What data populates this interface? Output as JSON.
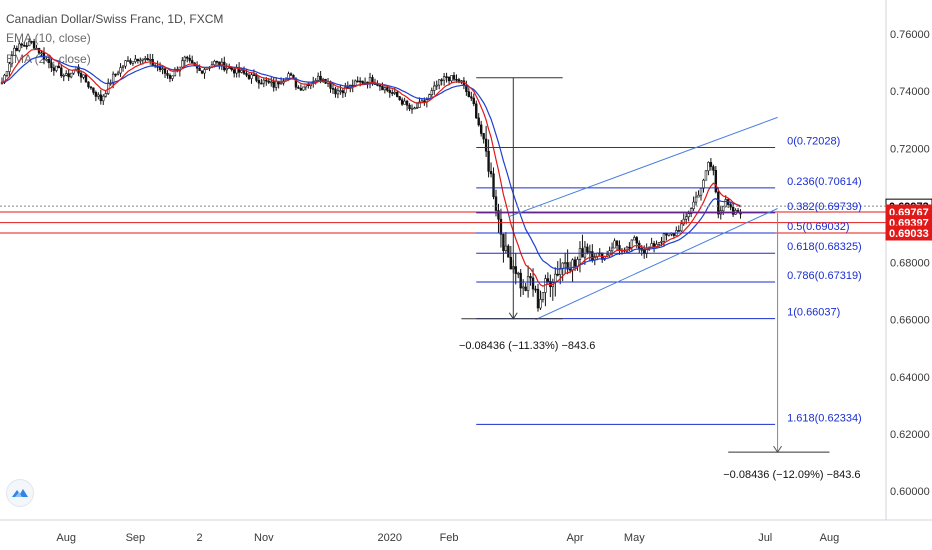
{
  "header": {
    "title": "Canadian Dollar/Swiss Franc, 1D, FXCM",
    "ema1_label": "EMA (10, close)",
    "ema2_label": "EMA (20, close)"
  },
  "chart_data": {
    "type": "candlestick",
    "title": "Canadian Dollar/Swiss Franc, 1D, FXCM",
    "ylim": [
      0.592,
      0.765
    ],
    "y_ticks": [
      "0.76000",
      "0.74000",
      "0.72000",
      "0.70000",
      "0.68000",
      "0.66000",
      "0.64000",
      "0.62000",
      "0.60000"
    ],
    "y_tick_values": [
      0.76,
      0.74,
      0.72,
      0.7,
      0.68,
      0.66,
      0.64,
      0.62,
      0.6
    ],
    "x_ticks": [
      "Aug",
      "Sep",
      "2",
      "Nov",
      "2020",
      "Feb",
      "Apr",
      "May",
      "Jul",
      "Aug"
    ],
    "price_path": [
      [
        0,
        0.743
      ],
      [
        5,
        0.755
      ],
      [
        12,
        0.757
      ],
      [
        20,
        0.749
      ],
      [
        26,
        0.745
      ],
      [
        30,
        0.748
      ],
      [
        36,
        0.741
      ],
      [
        40,
        0.737
      ],
      [
        45,
        0.745
      ],
      [
        50,
        0.75
      ],
      [
        56,
        0.752
      ],
      [
        62,
        0.749
      ],
      [
        68,
        0.745
      ],
      [
        74,
        0.751
      ],
      [
        80,
        0.747
      ],
      [
        86,
        0.75
      ],
      [
        92,
        0.748
      ],
      [
        98,
        0.746
      ],
      [
        104,
        0.744
      ],
      [
        110,
        0.742
      ],
      [
        116,
        0.746
      ],
      [
        120,
        0.741
      ],
      [
        126,
        0.744
      ],
      [
        130,
        0.745
      ],
      [
        135,
        0.74
      ],
      [
        140,
        0.741
      ],
      [
        144,
        0.743
      ],
      [
        150,
        0.744
      ],
      [
        155,
        0.741
      ],
      [
        160,
        0.738
      ],
      [
        166,
        0.733
      ],
      [
        172,
        0.737
      ],
      [
        176,
        0.742
      ],
      [
        180,
        0.745
      ],
      [
        186,
        0.743
      ],
      [
        191,
        0.735
      ],
      [
        195,
        0.722
      ],
      [
        198,
        0.71
      ],
      [
        201,
        0.695
      ],
      [
        204,
        0.683
      ],
      [
        208,
        0.678
      ],
      [
        211,
        0.67
      ],
      [
        214,
        0.674
      ],
      [
        217,
        0.666
      ],
      [
        220,
        0.672
      ],
      [
        224,
        0.676
      ],
      [
        228,
        0.681
      ],
      [
        232,
        0.679
      ],
      [
        236,
        0.686
      ],
      [
        240,
        0.683
      ],
      [
        244,
        0.682
      ],
      [
        248,
        0.687
      ],
      [
        252,
        0.683
      ],
      [
        256,
        0.688
      ],
      [
        260,
        0.684
      ],
      [
        264,
        0.686
      ],
      [
        268,
        0.689
      ],
      [
        272,
        0.69
      ],
      [
        276,
        0.694
      ],
      [
        280,
        0.701
      ],
      [
        284,
        0.708
      ],
      [
        286,
        0.715
      ],
      [
        288,
        0.712
      ],
      [
        290,
        0.698
      ],
      [
        293,
        0.701
      ],
      [
        296,
        0.697
      ],
      [
        299,
        0.698
      ]
    ],
    "ema10_label": "EMA (10, close)",
    "ema20_label": "EMA (20, close)",
    "ema10_color": "#e11919",
    "ema20_color": "#1f3fcf",
    "fib_levels": [
      {
        "label": "0(0.72028)",
        "value": 0.72028
      },
      {
        "label": "0.236(0.70614)",
        "value": 0.70614
      },
      {
        "label": "0.382(0.69739)",
        "value": 0.69739
      },
      {
        "label": "0.5(0.69032)",
        "value": 0.69032
      },
      {
        "label": "0.618(0.68325)",
        "value": 0.68325
      },
      {
        "label": "0.786(0.67319)",
        "value": 0.67319
      },
      {
        "label": "1(0.66037)",
        "value": 0.66037
      },
      {
        "label": "1.618(0.62334)",
        "value": 0.62334
      }
    ],
    "horizontal_lines": [
      {
        "value": 0.69767,
        "color": "#e11919"
      },
      {
        "value": 0.69397,
        "color": "#e11919"
      },
      {
        "value": 0.69033,
        "color": "#e11919"
      },
      {
        "value": 0.69973,
        "color": "#888888"
      }
    ],
    "price_tags": [
      {
        "label": "0.69973",
        "value": 0.69973,
        "bg": "#ffffff",
        "fg": "#000000"
      },
      {
        "label": "0.69767",
        "value": 0.69767,
        "bg": "#e11919",
        "fg": "#ffffff"
      },
      {
        "label": "0.69397",
        "value": 0.69397,
        "bg": "#e11919",
        "fg": "#ffffff"
      },
      {
        "label": "0.69033",
        "value": 0.69033,
        "bg": "#e11919",
        "fg": "#ffffff"
      }
    ],
    "measurements": [
      {
        "label": "−0.08436 (−11.33%) −843.6"
      },
      {
        "label": "−0.08436 (−12.09%) −843.6"
      }
    ],
    "channel_color": "#4a7fe0"
  }
}
